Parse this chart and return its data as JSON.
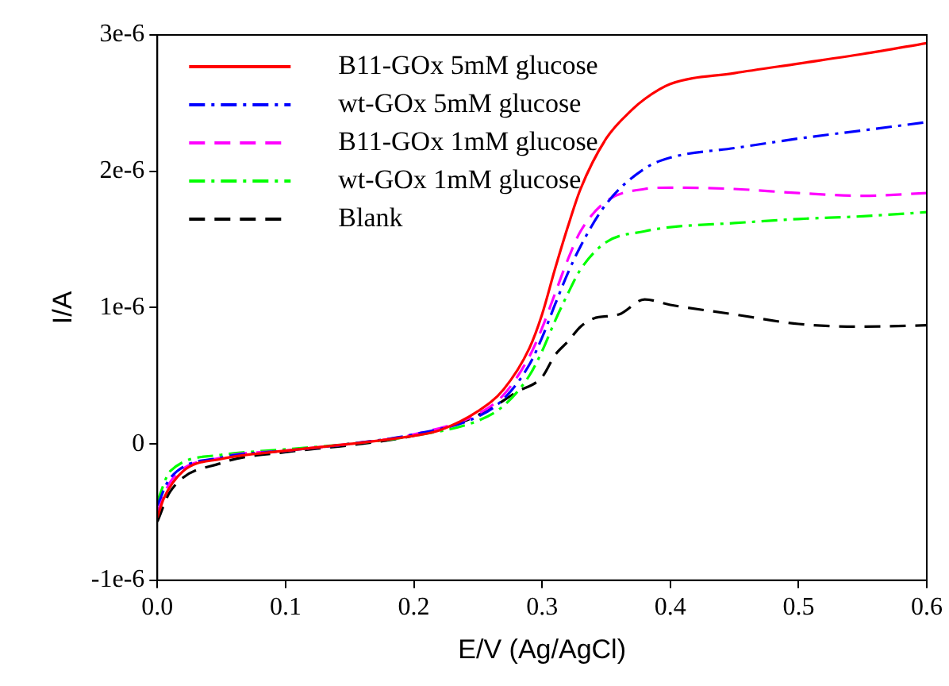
{
  "chart_data": {
    "type": "line",
    "xlabel": "E/V (Ag/AgCl)",
    "ylabel": "I/A",
    "xlim": [
      0,
      0.6
    ],
    "ylim": [
      -1e-06,
      3e-06
    ],
    "xticks": [
      {
        "value": 0,
        "label": "0.0"
      },
      {
        "value": 0.1,
        "label": "0.1"
      },
      {
        "value": 0.2,
        "label": "0.2"
      },
      {
        "value": 0.3,
        "label": "0.3"
      },
      {
        "value": 0.4,
        "label": "0.4"
      },
      {
        "value": 0.5,
        "label": "0.5"
      },
      {
        "value": 0.6,
        "label": "0.6"
      }
    ],
    "yticks": [
      {
        "value": -1e-06,
        "label": "-1e-6"
      },
      0,
      {
        "value": 1e-06,
        "label": "1e-6"
      },
      {
        "value": 2e-06,
        "label": "2e-6"
      },
      {
        "value": 3e-06,
        "label": "3e-6"
      }
    ],
    "grid": false,
    "legend": "top left",
    "marker": "none",
    "series": [
      {
        "name": "B11-GOx 5mM glucose",
        "color": "#ff0000",
        "line_style": "solid",
        "x": [
          0,
          0.005,
          0.02,
          0.05,
          0.1,
          0.15,
          0.2,
          0.22,
          0.25,
          0.27,
          0.29,
          0.3,
          0.31,
          0.32,
          0.33,
          0.35,
          0.37,
          0.38,
          0.4,
          0.45,
          0.5,
          0.55,
          0.6
        ],
        "values": [
          -5.4e-07,
          -4e-07,
          -2e-07,
          -1.1e-07,
          -5e-08,
          0,
          6e-08,
          1e-07,
          2.4e-07,
          4e-07,
          7e-07,
          9.5e-07,
          1.28e-06,
          1.59e-06,
          1.87e-06,
          2.24e-06,
          2.45e-06,
          2.53e-06,
          2.64e-06,
          2.72e-06,
          2.79e-06,
          2.86e-06,
          2.94e-06
        ]
      },
      {
        "name": "wt-GOx 5mM glucose",
        "color": "#0000ff",
        "line_style": "dashdot",
        "x": [
          0,
          0.01,
          0.05,
          0.1,
          0.15,
          0.2,
          0.25,
          0.27,
          0.29,
          0.3,
          0.31,
          0.32,
          0.33,
          0.35,
          0.38,
          0.4,
          0.45,
          0.5,
          0.55,
          0.6
        ],
        "values": [
          -4.5e-07,
          -2.5e-07,
          -1e-07,
          -5e-08,
          0,
          7e-08,
          2e-07,
          3.3e-07,
          5.8e-07,
          7.8e-07,
          1.02e-06,
          1.25e-06,
          1.45e-06,
          1.76e-06,
          2.02e-06,
          2.1e-06,
          2.17e-06,
          2.24e-06,
          2.3e-06,
          2.36e-06
        ]
      },
      {
        "name": "B11-GOx 1mM glucose",
        "color": "#ff00ff",
        "line_style": "dashed",
        "x": [
          0,
          0.01,
          0.05,
          0.1,
          0.15,
          0.2,
          0.25,
          0.27,
          0.29,
          0.3,
          0.31,
          0.32,
          0.33,
          0.35,
          0.38,
          0.4,
          0.45,
          0.5,
          0.55,
          0.6
        ],
        "values": [
          -5e-07,
          -2.8e-07,
          -1e-07,
          -5e-08,
          0,
          7e-08,
          2.2e-07,
          3.6e-07,
          6.4e-07,
          8.5e-07,
          1.1e-06,
          1.35e-06,
          1.56e-06,
          1.78e-06,
          1.87e-06,
          1.88e-06,
          1.87e-06,
          1.84e-06,
          1.82e-06,
          1.84e-06
        ]
      },
      {
        "name": "wt-GOx 1mM glucose",
        "color": "#00ff00",
        "line_style": "dashdot",
        "x": [
          0,
          0.01,
          0.05,
          0.1,
          0.15,
          0.2,
          0.25,
          0.27,
          0.29,
          0.3,
          0.31,
          0.32,
          0.33,
          0.35,
          0.38,
          0.4,
          0.45,
          0.5,
          0.55,
          0.6
        ],
        "values": [
          -4.2e-07,
          -2e-07,
          -8e-08,
          -4e-08,
          0,
          6e-08,
          1.7e-07,
          2.8e-07,
          5e-07,
          6.8e-07,
          9e-07,
          1.1e-06,
          1.28e-06,
          1.48e-06,
          1.56e-06,
          1.59e-06,
          1.62e-06,
          1.65e-06,
          1.67e-06,
          1.7e-06
        ]
      },
      {
        "name": "Blank",
        "color": "#000000",
        "line_style": "dashed",
        "x": [
          0,
          0.01,
          0.05,
          0.1,
          0.15,
          0.2,
          0.24,
          0.26,
          0.28,
          0.3,
          0.31,
          0.32,
          0.33,
          0.34,
          0.36,
          0.38,
          0.4,
          0.45,
          0.5,
          0.55,
          0.6
        ],
        "values": [
          -5.7e-07,
          -3.5e-07,
          -1.4e-07,
          -6e-08,
          -1e-08,
          6e-08,
          1.7e-07,
          2.6e-07,
          3.8e-07,
          4.9e-07,
          6.5e-07,
          7.5e-07,
          8.6e-07,
          9.2e-07,
          9.5e-07,
          1.06e-06,
          1.02e-06,
          9.5e-07,
          8.8e-07,
          8.6e-07,
          8.7e-07
        ]
      }
    ]
  }
}
